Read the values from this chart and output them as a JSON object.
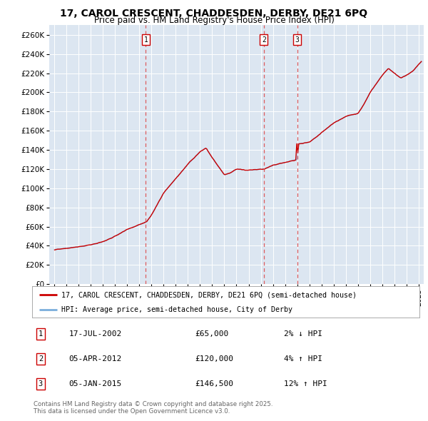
{
  "title": "17, CAROL CRESCENT, CHADDESDEN, DERBY, DE21 6PQ",
  "subtitle": "Price paid vs. HM Land Registry's House Price Index (HPI)",
  "bg_color": "#dce6f1",
  "ylim": [
    0,
    270000
  ],
  "yticks": [
    0,
    20000,
    40000,
    60000,
    80000,
    100000,
    120000,
    140000,
    160000,
    180000,
    200000,
    220000,
    240000,
    260000
  ],
  "sale_t": [
    2002.542,
    2012.25,
    2015.0
  ],
  "sale_prices": [
    65000,
    120000,
    146500
  ],
  "sale_labels": [
    "1",
    "2",
    "3"
  ],
  "legend_red": "17, CAROL CRESCENT, CHADDESDEN, DERBY, DE21 6PQ (semi-detached house)",
  "legend_blue": "HPI: Average price, semi-detached house, City of Derby",
  "annotation_rows": [
    {
      "num": "1",
      "date": "17-JUL-2002",
      "price": "£65,000",
      "change": "2% ↓ HPI"
    },
    {
      "num": "2",
      "date": "05-APR-2012",
      "price": "£120,000",
      "change": "4% ↑ HPI"
    },
    {
      "num": "3",
      "date": "05-JAN-2015",
      "price": "£146,500",
      "change": "12% ↑ HPI"
    }
  ],
  "footer": "Contains HM Land Registry data © Crown copyright and database right 2025.\nThis data is licensed under the Open Government Licence v3.0.",
  "red_color": "#cc0000",
  "blue_color": "#7aaedc",
  "dashed_color": "#dd4444",
  "anchor_t": [
    1995.0,
    1996.0,
    1997.0,
    1998.0,
    1999.0,
    2000.0,
    2001.0,
    2002.0,
    2002.6,
    2003.0,
    2004.0,
    2005.0,
    2006.0,
    2007.0,
    2007.5,
    2008.0,
    2009.0,
    2009.5,
    2010.0,
    2011.0,
    2012.0,
    2012.3,
    2013.0,
    2014.0,
    2015.0,
    2015.1,
    2016.0,
    2017.0,
    2018.0,
    2019.0,
    2020.0,
    2020.5,
    2021.0,
    2022.0,
    2022.5,
    2023.0,
    2023.5,
    2024.0,
    2024.5,
    2025.2
  ],
  "anchor_v": [
    36000,
    37500,
    39000,
    41000,
    44000,
    50000,
    57000,
    62000,
    65000,
    72000,
    95000,
    110000,
    125000,
    138000,
    142000,
    132000,
    114000,
    116000,
    120000,
    119000,
    120000,
    120000,
    124000,
    127000,
    130000,
    146500,
    148000,
    158000,
    168000,
    175000,
    178000,
    188000,
    200000,
    218000,
    225000,
    220000,
    215000,
    218000,
    222000,
    232000
  ],
  "xstart": 1994.6,
  "xend": 2025.4
}
